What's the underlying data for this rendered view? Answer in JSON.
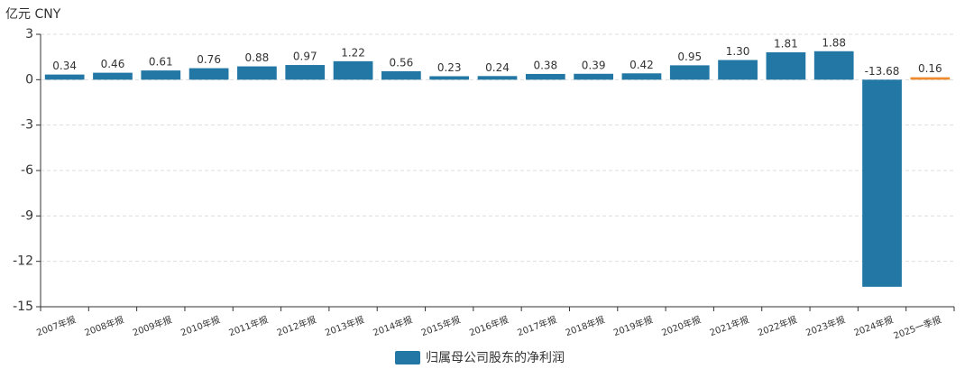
{
  "chart_data": {
    "type": "bar",
    "y_axis_label": "亿元  CNY",
    "categories": [
      "2007年报",
      "2008年报",
      "2009年报",
      "2010年报",
      "2011年报",
      "2012年报",
      "2013年报",
      "2014年报",
      "2015年报",
      "2016年报",
      "2017年报",
      "2018年报",
      "2019年报",
      "2020年报",
      "2021年报",
      "2022年报",
      "2023年报",
      "2024年报",
      "2025一季报"
    ],
    "series": [
      {
        "name": "归属母公司股东的净利润",
        "color": "#2277a4",
        "values": [
          0.34,
          0.46,
          0.61,
          0.76,
          0.88,
          0.97,
          1.22,
          0.56,
          0.23,
          0.24,
          0.38,
          0.39,
          0.42,
          0.95,
          1.3,
          1.81,
          1.88,
          -13.68,
          0.16
        ],
        "value_labels": [
          "0.34",
          "0.46",
          "0.61",
          "0.76",
          "0.88",
          "0.97",
          "1.22",
          "0.56",
          "0.23",
          "0.24",
          "0.38",
          "0.39",
          "0.42",
          "0.95",
          "1.30",
          "1.81",
          "1.88",
          "-13.68",
          "0.16"
        ],
        "colors": [
          "#2277a4",
          "#2277a4",
          "#2277a4",
          "#2277a4",
          "#2277a4",
          "#2277a4",
          "#2277a4",
          "#2277a4",
          "#2277a4",
          "#2277a4",
          "#2277a4",
          "#2277a4",
          "#2277a4",
          "#2277a4",
          "#2277a4",
          "#2277a4",
          "#2277a4",
          "#2277a4",
          "#ee8a2c"
        ]
      }
    ],
    "ylim": [
      -15,
      3
    ],
    "yticks": [
      -15,
      -12,
      -9,
      -6,
      -3,
      0,
      3
    ],
    "grid": true
  }
}
